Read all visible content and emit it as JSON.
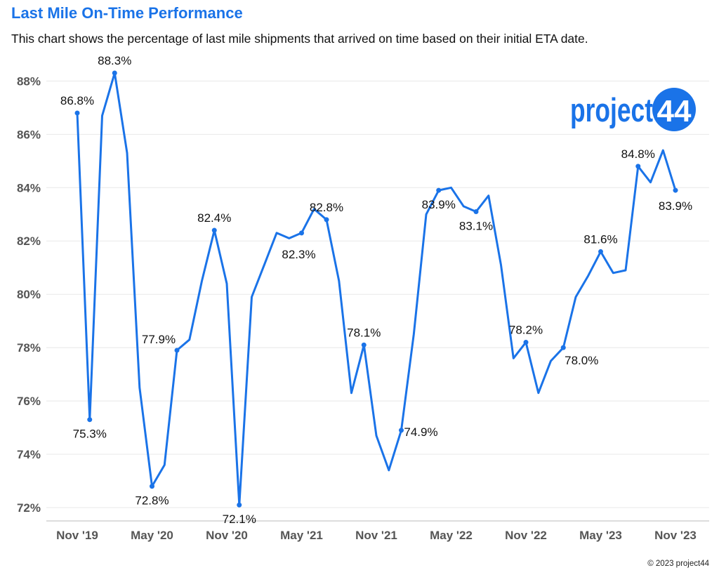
{
  "header": {
    "title": "Last Mile On-Time Performance",
    "subtitle": "This chart shows the percentage of last mile shipments that arrived on time based on their initial ETA date."
  },
  "logo": {
    "text": "project44"
  },
  "footer": {
    "copyright": "© 2023 project44"
  },
  "colors": {
    "line": "#1a73e8",
    "title": "#1a73e8",
    "grid": "#e8e8e8",
    "axis_text": "#555555"
  },
  "chart_data": {
    "type": "line",
    "title": "Last Mile On-Time Performance",
    "xlabel": "",
    "ylabel": "",
    "ylim": [
      71.5,
      88.8
    ],
    "grid": true,
    "y_ticks": [
      72,
      74,
      76,
      78,
      80,
      82,
      84,
      86,
      88
    ],
    "y_tick_labels": [
      "72%",
      "74%",
      "76%",
      "78%",
      "80%",
      "82%",
      "84%",
      "86%",
      "88%"
    ],
    "x_tick_labels": [
      "Nov '19",
      "May '20",
      "Nov '20",
      "May '21",
      "Nov '21",
      "May '22",
      "Nov '22",
      "May '23",
      "Nov '23"
    ],
    "x_tick_indices": [
      0,
      6,
      12,
      18,
      24,
      30,
      36,
      42,
      48
    ],
    "x": [
      "2019-11",
      "2019-12",
      "2020-01",
      "2020-02",
      "2020-03",
      "2020-04",
      "2020-05",
      "2020-06",
      "2020-07",
      "2020-08",
      "2020-09",
      "2020-10",
      "2020-11",
      "2020-12",
      "2021-01",
      "2021-02",
      "2021-03",
      "2021-04",
      "2021-05",
      "2021-06",
      "2021-07",
      "2021-08",
      "2021-09",
      "2021-10",
      "2021-11",
      "2021-12",
      "2022-01",
      "2022-02",
      "2022-03",
      "2022-04",
      "2022-05",
      "2022-06",
      "2022-07",
      "2022-08",
      "2022-09",
      "2022-10",
      "2022-11",
      "2022-12",
      "2023-01",
      "2023-02",
      "2023-03",
      "2023-04",
      "2023-05",
      "2023-06",
      "2023-07",
      "2023-08",
      "2023-09",
      "2023-10",
      "2023-11"
    ],
    "series": [
      {
        "values": [
          86.8,
          75.3,
          86.7,
          88.3,
          85.3,
          76.5,
          72.8,
          73.6,
          77.9,
          78.3,
          80.5,
          82.4,
          80.4,
          72.1,
          79.9,
          81.1,
          82.3,
          82.1,
          82.3,
          83.2,
          82.8,
          80.5,
          76.3,
          78.1,
          74.7,
          73.4,
          74.9,
          78.5,
          83.0,
          83.9,
          84.0,
          83.3,
          83.1,
          83.7,
          81.1,
          77.6,
          78.2,
          76.3,
          77.5,
          78.0,
          79.9,
          80.7,
          81.6,
          80.8,
          80.9,
          84.8,
          84.2,
          85.4,
          83.9
        ]
      }
    ],
    "data_labels": [
      {
        "index": 0,
        "text": "86.8%"
      },
      {
        "index": 1,
        "text": "75.3%"
      },
      {
        "index": 3,
        "text": "88.3%"
      },
      {
        "index": 6,
        "text": "72.8%"
      },
      {
        "index": 8,
        "text": "77.9%"
      },
      {
        "index": 11,
        "text": "82.4%"
      },
      {
        "index": 13,
        "text": "72.1%"
      },
      {
        "index": 18,
        "text": "82.3%"
      },
      {
        "index": 20,
        "text": "82.8%"
      },
      {
        "index": 23,
        "text": "78.1%"
      },
      {
        "index": 26,
        "text": "74.9%"
      },
      {
        "index": 29,
        "text": "83.9%"
      },
      {
        "index": 32,
        "text": "83.1%"
      },
      {
        "index": 36,
        "text": "78.2%"
      },
      {
        "index": 39,
        "text": "78.0%"
      },
      {
        "index": 42,
        "text": "81.6%"
      },
      {
        "index": 45,
        "text": "84.8%"
      },
      {
        "index": 48,
        "text": "83.9%"
      }
    ]
  }
}
